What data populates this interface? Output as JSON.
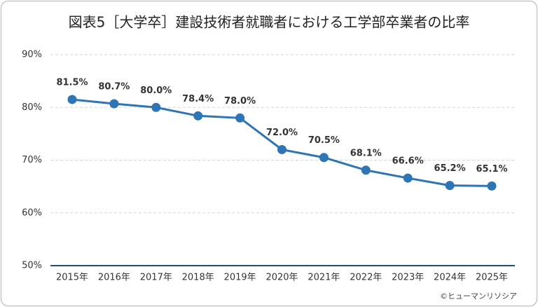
{
  "chart_data": {
    "type": "line",
    "title": "図表5［大学卒］建設技術者就職者における工学部卒業者の比率",
    "categories": [
      "2015年",
      "2016年",
      "2017年",
      "2018年",
      "2019年",
      "2020年",
      "2021年",
      "2022年",
      "2023年",
      "2024年",
      "2025年"
    ],
    "series": [
      {
        "color": "#2e75b6",
        "values": [
          81.5,
          80.7,
          80.0,
          78.4,
          78.0,
          72.0,
          70.5,
          68.1,
          66.6,
          65.2,
          65.1
        ],
        "value_labels": [
          "81.5%",
          "80.7%",
          "80.0%",
          "78.4%",
          "78.0%",
          "72.0%",
          "70.5%",
          "68.1%",
          "66.6%",
          "65.2%",
          "65.1%"
        ]
      }
    ],
    "ylim": [
      50,
      90
    ],
    "yticks": [
      {
        "value": 50,
        "label": "50%"
      },
      {
        "value": 60,
        "label": "60%"
      },
      {
        "value": 70,
        "label": "70%"
      },
      {
        "value": 80,
        "label": "80%"
      },
      {
        "value": 90,
        "label": "90%"
      }
    ],
    "grid": true,
    "source": "©ヒューマンリソシア"
  }
}
